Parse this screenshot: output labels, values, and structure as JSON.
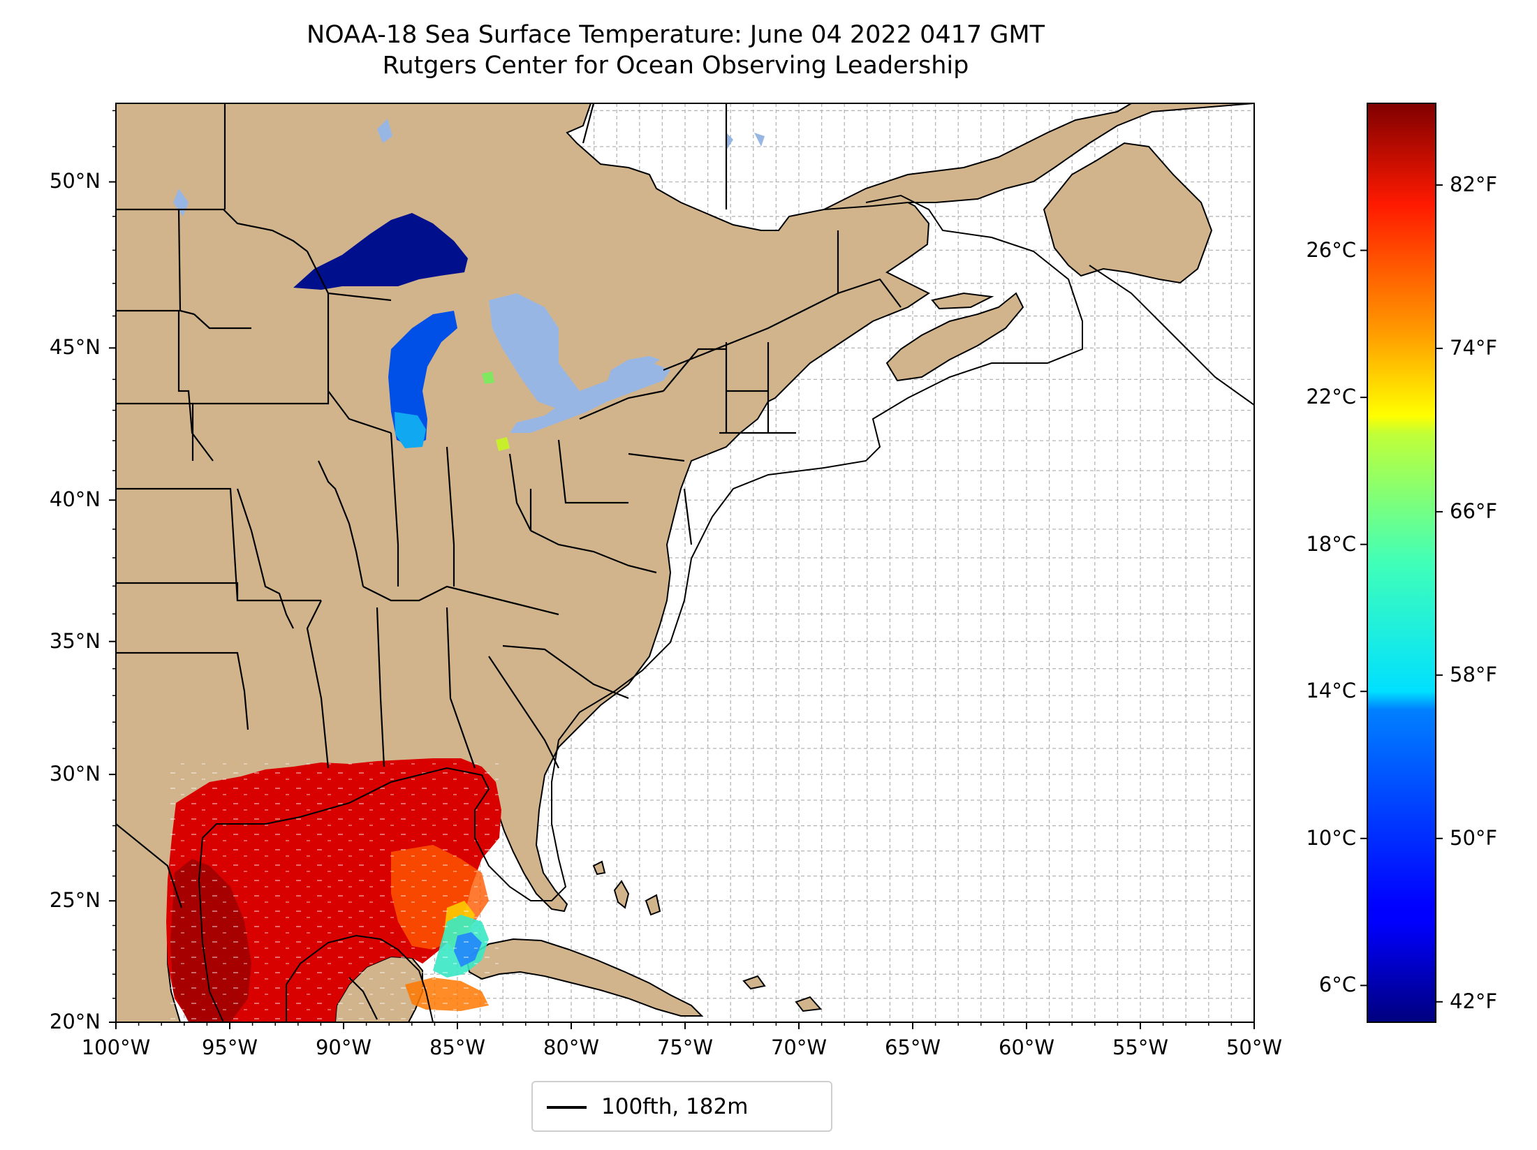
{
  "title": {
    "line1": "NOAA-18 Sea Surface Temperature: June 04 2022 0417 GMT",
    "line2": "Rutgers Center for Ocean Observing Leadership"
  },
  "map": {
    "lon_range": [
      -100,
      -50
    ],
    "lat_range": [
      20,
      52.2
    ],
    "gridlines": true,
    "colors": {
      "land": "#d2b48c",
      "lakes": "#98b6e4",
      "ocean": "#ffffff",
      "borders": "#000000",
      "grid": "#b4b4b4"
    },
    "x_ticks": [
      {
        "lon": -100,
        "label": "100°W"
      },
      {
        "lon": -95,
        "label": "95°W"
      },
      {
        "lon": -90,
        "label": "90°W"
      },
      {
        "lon": -85,
        "label": "85°W"
      },
      {
        "lon": -80,
        "label": "80°W"
      },
      {
        "lon": -75,
        "label": "75°W"
      },
      {
        "lon": -70,
        "label": "70°W"
      },
      {
        "lon": -65,
        "label": "65°W"
      },
      {
        "lon": -60,
        "label": "60°W"
      },
      {
        "lon": -55,
        "label": "55°W"
      },
      {
        "lon": -50,
        "label": "50°W"
      }
    ],
    "y_ticks": [
      {
        "lat": 20,
        "label": "20°N"
      },
      {
        "lat": 25,
        "label": "25°N"
      },
      {
        "lat": 30,
        "label": "30°N"
      },
      {
        "lat": 35,
        "label": "35°N"
      },
      {
        "lat": 40,
        "label": "40°N"
      },
      {
        "lat": 45,
        "label": "45°N"
      },
      {
        "lat": 50,
        "label": "50°N"
      }
    ]
  },
  "colorbar": {
    "colormap": "jet",
    "celsius_range": [
      5.0,
      30.0
    ],
    "celsius_ticks": [
      {
        "value": 6,
        "label": "6°C"
      },
      {
        "value": 10,
        "label": "10°C"
      },
      {
        "value": 14,
        "label": "14°C"
      },
      {
        "value": 18,
        "label": "18°C"
      },
      {
        "value": 22,
        "label": "22°C"
      },
      {
        "value": 26,
        "label": "26°C"
      }
    ],
    "fahrenheit_ticks": [
      {
        "value": 42,
        "label": "42°F"
      },
      {
        "value": 50,
        "label": "50°F"
      },
      {
        "value": 58,
        "label": "58°F"
      },
      {
        "value": 66,
        "label": "66°F"
      },
      {
        "value": 74,
        "label": "74°F"
      },
      {
        "value": 82,
        "label": "82°F"
      }
    ]
  },
  "legend": {
    "entries": [
      {
        "label": "100fth, 182m",
        "color": "#000000"
      }
    ]
  }
}
